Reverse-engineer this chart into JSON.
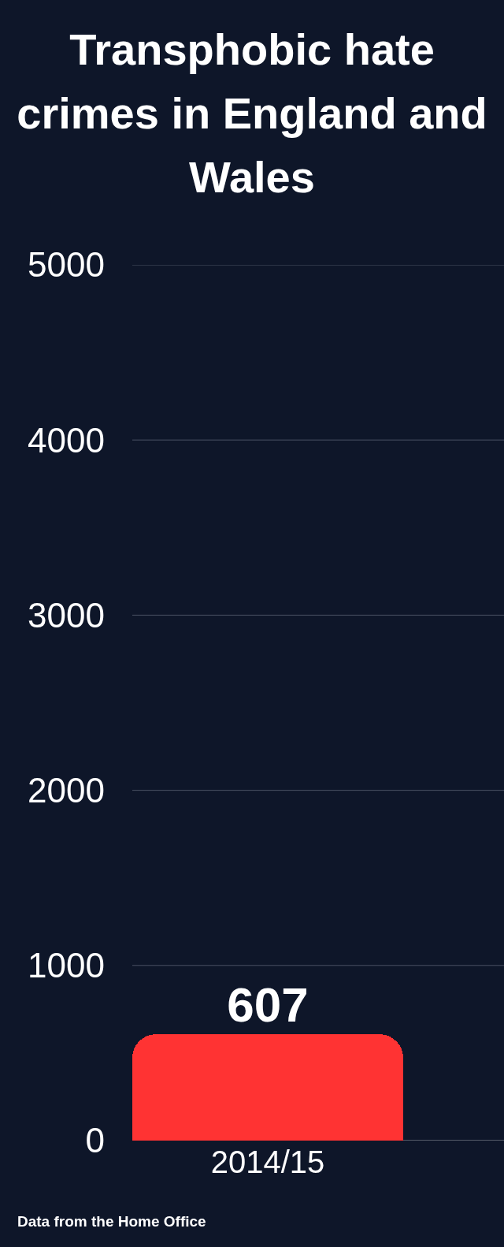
{
  "chart_data": {
    "type": "bar",
    "title": "Transphobic hate crimes in England and Wales",
    "categories": [
      "2014/15"
    ],
    "values": [
      607
    ],
    "color": "#ff3333",
    "ylim": [
      0,
      5000
    ],
    "yticks": [
      0,
      1000,
      2000,
      3000,
      4000,
      5000
    ],
    "grid": "y",
    "data_labels": true,
    "annotations": [
      "Data from the Home Office"
    ]
  }
}
